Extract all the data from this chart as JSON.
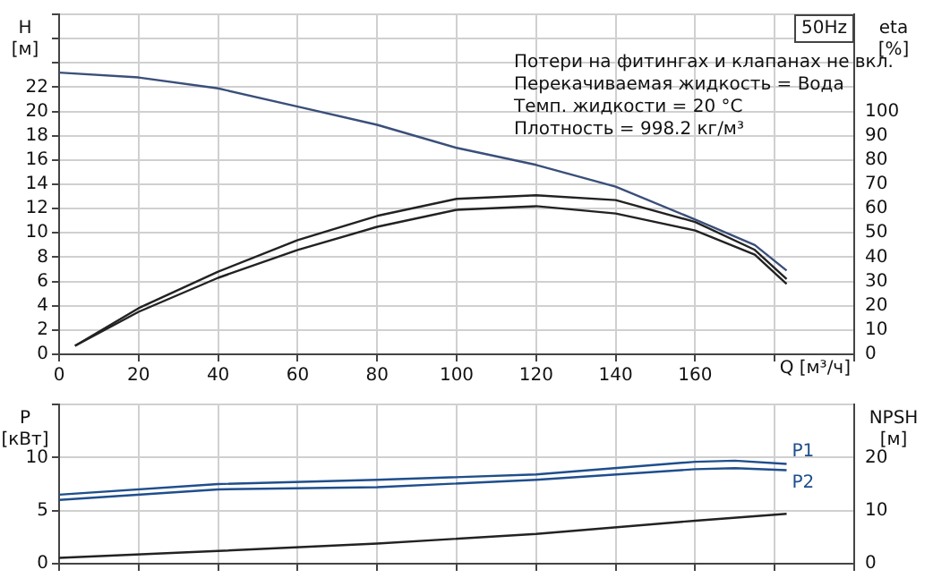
{
  "chart_data": [
    {
      "type": "line",
      "xlabel": "Q [м³/ч]",
      "ylabel": "H [м]",
      "y2label": "eta [%]",
      "xlim": [
        0,
        200
      ],
      "xticks": [
        0,
        20,
        40,
        60,
        80,
        100,
        120,
        140,
        160,
        {
          "value": 180,
          "label": null
        },
        {
          "value": 200,
          "label": null
        }
      ],
      "ylim": [
        0,
        28
      ],
      "yticks": [
        0,
        2,
        4,
        6,
        8,
        10,
        12,
        14,
        16,
        18,
        20,
        22,
        {
          "value": 24,
          "label": null
        },
        {
          "value": 26,
          "label": null
        },
        {
          "value": 28,
          "label": null
        }
      ],
      "y2lim": [
        0,
        140
      ],
      "y2ticks": [
        0,
        10,
        20,
        30,
        40,
        50,
        60,
        70,
        80,
        90,
        100
      ],
      "grid": true,
      "legend": false,
      "marker": "none",
      "line_style": "solid",
      "annotations": [
        "50Hz",
        "Потери на фитингах и клапанах не вкл.",
        "Перекачиваемая жидкость = Вода",
        "Темп. жидкости = 20 °C",
        "Плотность = 998.2 кг/м³"
      ],
      "series": [
        {
          "color": "#3a4f7a",
          "x": [
            0,
            20,
            40,
            60,
            80,
            100,
            120,
            140,
            160,
            175,
            183
          ],
          "values": [
            23.2,
            22.8,
            21.9,
            20.4,
            18.9,
            17.0,
            15.6,
            13.8,
            11.1,
            9.0,
            6.9
          ]
        },
        {
          "color": "#222222",
          "axis": "y2",
          "x": [
            4,
            20,
            40,
            60,
            80,
            100,
            120,
            140,
            160,
            175,
            183
          ],
          "values": [
            3.5,
            19,
            34,
            47,
            57,
            64,
            65.5,
            63.5,
            54.5,
            43,
            31
          ]
        },
        {
          "color": "#222222",
          "axis": "y2",
          "x": [
            4,
            20,
            40,
            60,
            80,
            100,
            120,
            140,
            160,
            175,
            183
          ],
          "values": [
            3.5,
            17.5,
            31.5,
            43,
            52.5,
            59.5,
            61,
            58,
            51,
            41,
            29
          ]
        }
      ]
    },
    {
      "type": "line",
      "ylabel": "P [кВт]",
      "y2label": "NPSH [м]",
      "xlim": [
        0,
        200
      ],
      "xticks": [
        {
          "value": 0,
          "label": null
        },
        {
          "value": 20,
          "label": null
        },
        {
          "value": 40,
          "label": null
        },
        {
          "value": 60,
          "label": null
        },
        {
          "value": 80,
          "label": null
        },
        {
          "value": 100,
          "label": null
        },
        {
          "value": 120,
          "label": null
        },
        {
          "value": 140,
          "label": null
        },
        {
          "value": 160,
          "label": null
        },
        {
          "value": 180,
          "label": null
        },
        {
          "value": 200,
          "label": null
        }
      ],
      "ylim": [
        0,
        15
      ],
      "yticks": [
        0,
        5,
        10,
        {
          "value": 15,
          "label": null
        }
      ],
      "y2lim": [
        0,
        30
      ],
      "y2ticks": [
        0,
        10,
        20
      ],
      "grid": true,
      "legend": false,
      "marker": "none",
      "line_style": "solid",
      "tick_labels": "y",
      "series": [
        {
          "name": "P1",
          "color": "#1f4e8c",
          "x": [
            0,
            40,
            80,
            120,
            160,
            170,
            183
          ],
          "values": [
            6.5,
            7.5,
            7.9,
            8.4,
            9.6,
            9.7,
            9.4
          ]
        },
        {
          "name": "P2",
          "color": "#1f4e8c",
          "x": [
            0,
            40,
            80,
            120,
            160,
            170,
            183
          ],
          "values": [
            6.0,
            7.0,
            7.2,
            7.9,
            8.9,
            9.0,
            8.8
          ]
        },
        {
          "color": "#222222",
          "axis": "y2",
          "x": [
            0,
            40,
            80,
            120,
            160,
            183
          ],
          "values": [
            1.1,
            2.4,
            3.8,
            5.6,
            8.1,
            9.4
          ]
        }
      ]
    }
  ]
}
